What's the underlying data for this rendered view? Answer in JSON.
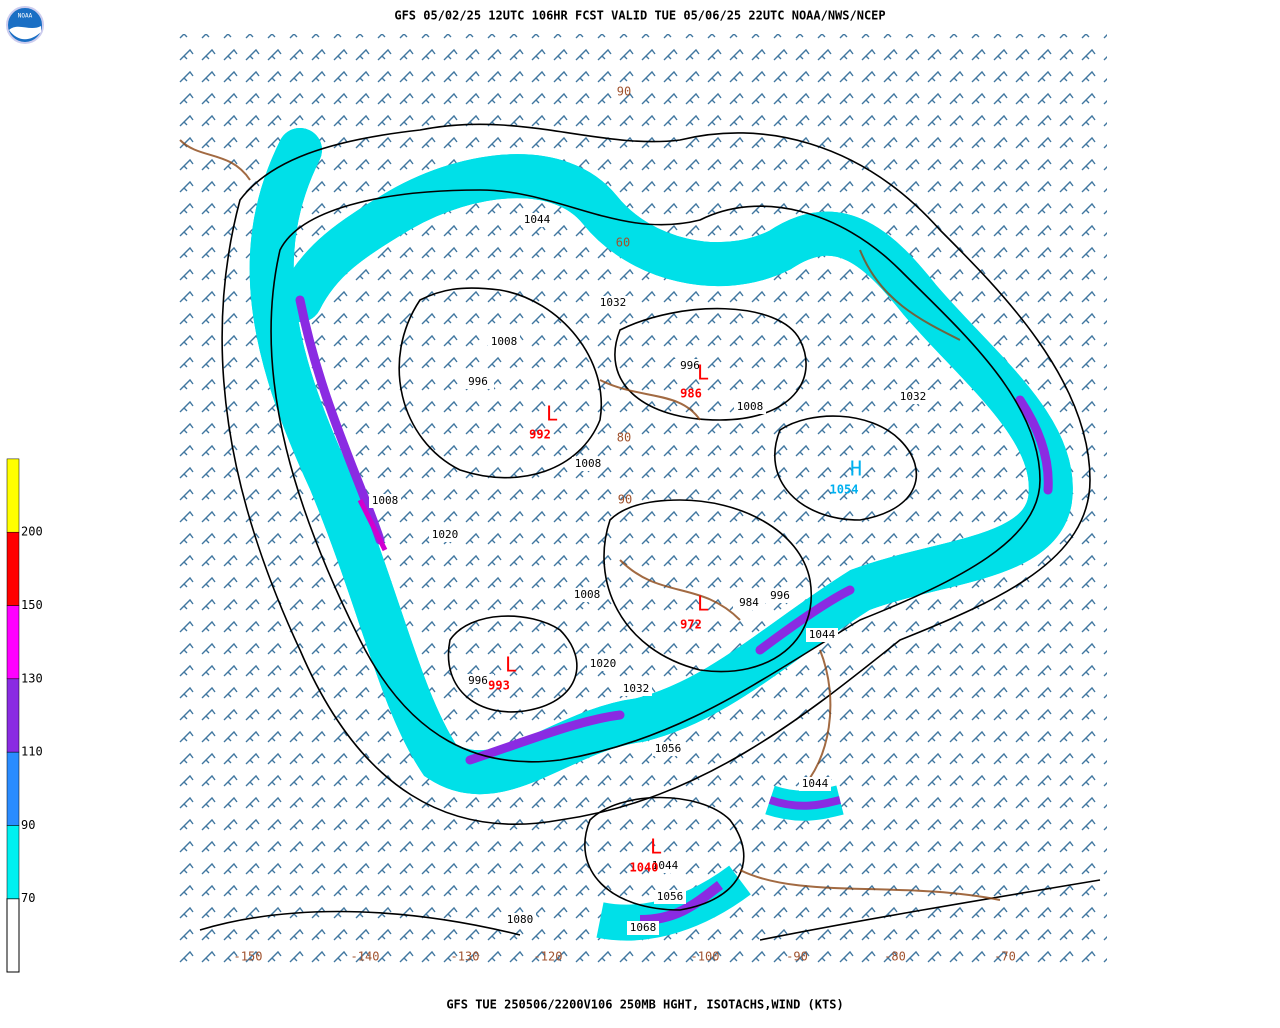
{
  "header": {
    "title": "GFS 05/02/25 12UTC 106HR FCST VALID TUE 05/06/25 22UTC NOAA/NWS/NCEP",
    "logo": "NOAA"
  },
  "footer": {
    "caption": "GFS TUE 250506/2200V106 250MB HGHT, ISOTACHS,WIND (KTS)"
  },
  "colorbar": {
    "levels": [
      {
        "label": 70,
        "color": "#00f0f0"
      },
      {
        "label": 90,
        "color": "#2a8cff"
      },
      {
        "label": 110,
        "color": "#8a2be2"
      },
      {
        "label": 130,
        "color": "#ff00ff"
      },
      {
        "label": 150,
        "color": "#ff0000"
      },
      {
        "label": 200,
        "color": "#ffff00"
      }
    ]
  },
  "map": {
    "contour_labels": [
      1044,
      1032,
      1008,
      996,
      996,
      1008,
      1032,
      1008,
      1008,
      1020,
      1008,
      984,
      996,
      1044,
      1020,
      996,
      1032,
      1056,
      1044,
      1044,
      1056,
      1080,
      1068
    ],
    "centers": [
      {
        "symbol": "L",
        "value": 992,
        "color": "#ff0000"
      },
      {
        "symbol": "L",
        "value": 986,
        "color": "#ff0000"
      },
      {
        "symbol": "L",
        "value": 972,
        "color": "#ff0000"
      },
      {
        "symbol": "L",
        "value": 993,
        "color": "#ff0000"
      },
      {
        "symbol": "L",
        "value": 1040,
        "color": "#ff0000"
      },
      {
        "symbol": "H",
        "value": 1054,
        "color": "#00b0f0"
      }
    ],
    "grid_labels": [
      -150,
      -140,
      -130,
      -120,
      -100,
      -90,
      -80,
      -70,
      90,
      60,
      80,
      90
    ]
  }
}
